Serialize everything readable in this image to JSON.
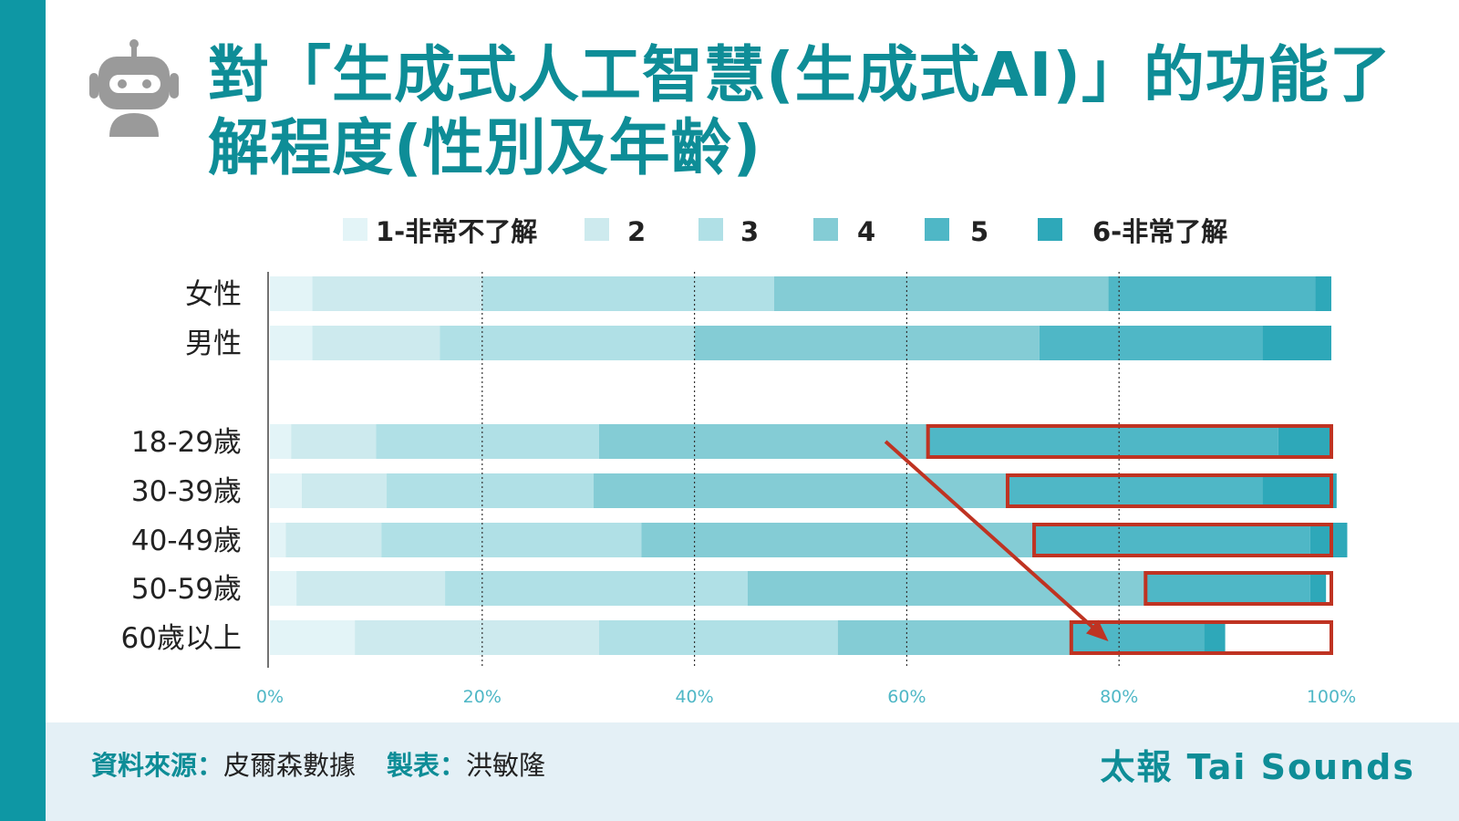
{
  "title": {
    "line1": "對「生成式人工智慧(生成式AI)」的功能了",
    "line2": "解程度(性別及年齡)"
  },
  "footer": {
    "source_label": "資料來源：",
    "source_value": "皮爾森數據",
    "maker_label": "製表：",
    "maker_value": "洪敏隆",
    "brand": "太報 Tai Sounds"
  },
  "colors": {
    "accent": "#0e97a4",
    "series": [
      "#e3f4f7",
      "#cdeaee",
      "#b0e0e6",
      "#84ccd5",
      "#4fb7c6",
      "#2ea8b9"
    ],
    "highlight": "#bf3322"
  },
  "icons": {
    "logo": "robot-icon"
  },
  "chart_data": {
    "type": "bar",
    "orientation": "horizontal",
    "stacked": true,
    "categories": [
      "女性",
      "男性",
      "18-29歲",
      "30-39歲",
      "40-49歲",
      "50-59歲",
      "60歲以上"
    ],
    "series": [
      {
        "name": "1-非常不了解",
        "values": [
          4,
          4,
          2,
          3,
          1.5,
          2.5,
          8
        ]
      },
      {
        "name": "2",
        "values": [
          16,
          12,
          8,
          8,
          9,
          14,
          23
        ]
      },
      {
        "name": "3",
        "values": [
          27.5,
          24,
          21,
          19.5,
          24.5,
          28.5,
          22.5
        ]
      },
      {
        "name": "4",
        "values": [
          31.5,
          32.5,
          31,
          39,
          37,
          37.5,
          22
        ]
      },
      {
        "name": "5",
        "values": [
          19.5,
          21,
          33,
          24,
          26,
          15.5,
          12.5
        ]
      },
      {
        "name": "6-非常了解",
        "values": [
          1.5,
          6.5,
          5,
          7,
          3.5,
          1.5,
          2
        ]
      }
    ],
    "highlighted_series": [
      "5",
      "6-非常了解"
    ],
    "highlighted_categories": [
      "18-29歲",
      "30-39歲",
      "40-49歲",
      "50-59歲",
      "60歲以上"
    ],
    "arrow": {
      "from": {
        "category": "18-29歲",
        "x": 58
      },
      "to": {
        "category": "60歲以上",
        "x": 79
      }
    },
    "xlim": [
      0,
      100
    ],
    "x_ticks": [
      "0%",
      "20%",
      "40%",
      "60%",
      "80%",
      "100%"
    ],
    "grid": "vertical-dotted",
    "legend": "top"
  }
}
